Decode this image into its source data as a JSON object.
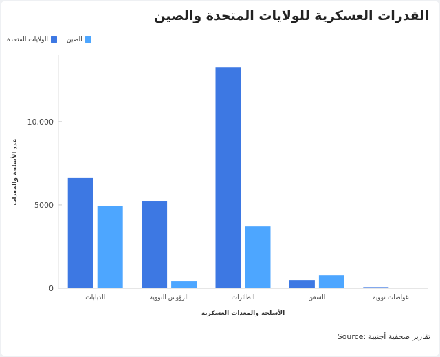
{
  "chart_data": {
    "type": "bar",
    "title": "القدرات العسكرية للولايات المتحدة والصين",
    "xlabel": "الأسلحة والمعدات العسكرية",
    "ylabel": "عدد الأسلحة والمعدات",
    "categories": [
      "الدبابات",
      "الرؤوس النووية",
      "الطائرات",
      "السفن",
      "غواصات نووية"
    ],
    "series": [
      {
        "name": "الولايات المتحدة",
        "color": "#3d78e3",
        "values": [
          6612,
          5244,
          13247,
          490,
          68
        ]
      },
      {
        "name": "الصين",
        "color": "#4da6ff",
        "values": [
          4950,
          410,
          3710,
          777,
          12
        ]
      }
    ],
    "ylim": [
      0,
      14000
    ],
    "yticks": [
      0,
      5000,
      10000
    ],
    "ytick_labels": [
      "0",
      "5000",
      "10,000"
    ],
    "grid": false,
    "legend_position": "top-left",
    "source": "تقارير صحفية أجنبية :Source"
  }
}
